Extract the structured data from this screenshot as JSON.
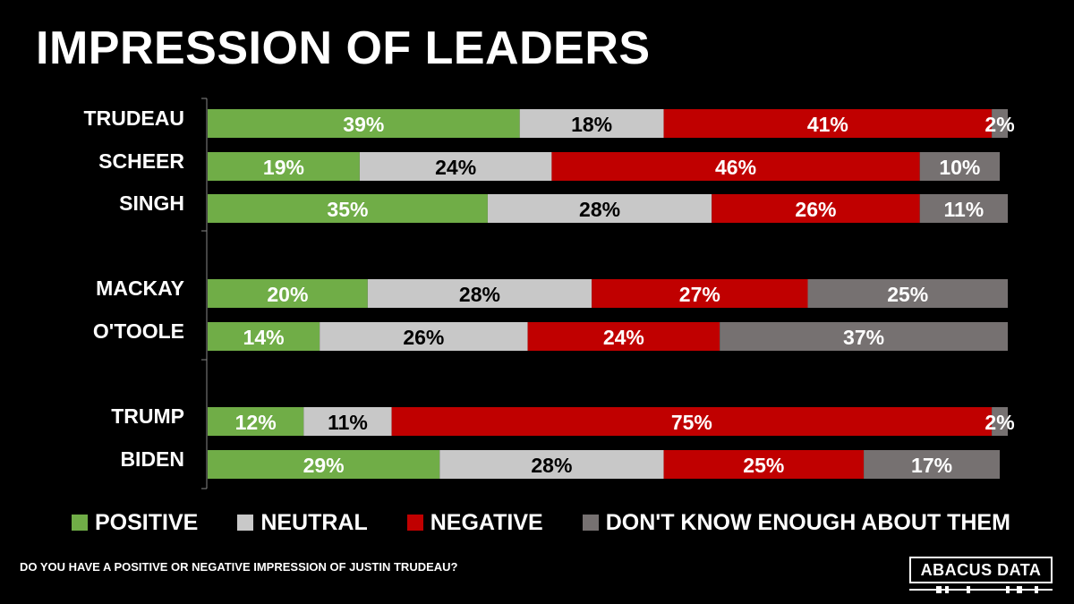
{
  "chart_data": {
    "type": "bar",
    "orientation": "horizontal",
    "stacked": true,
    "title": "IMPRESSION OF LEADERS",
    "categories": [
      "TRUDEAU",
      "SCHEER",
      "SINGH",
      "MACKAY",
      "O'TOOLE",
      "TRUMP",
      "BIDEN"
    ],
    "groups": [
      [
        0,
        1,
        2
      ],
      [
        3,
        4
      ],
      [
        5,
        6
      ]
    ],
    "series": [
      {
        "name": "POSITIVE",
        "color": "#70ad47",
        "values": [
          39,
          19,
          35,
          20,
          14,
          12,
          29
        ]
      },
      {
        "name": "NEUTRAL",
        "color": "#c8c8c8",
        "values": [
          18,
          24,
          28,
          28,
          26,
          11,
          28
        ]
      },
      {
        "name": "NEGATIVE",
        "color": "#c00000",
        "values": [
          41,
          46,
          26,
          27,
          24,
          75,
          25
        ]
      },
      {
        "name": "DON'T KNOW ENOUGH ABOUT THEM",
        "color": "#767171",
        "values": [
          2,
          10,
          11,
          25,
          37,
          2,
          17
        ]
      }
    ],
    "label_colors": [
      "#ffffff",
      "#000000",
      "#ffffff",
      "#ffffff"
    ],
    "value_suffix": "%",
    "xlim": [
      0,
      100
    ],
    "legend_position": "bottom",
    "grid": false
  },
  "question": "DO YOU HAVE A POSITIVE OR NEGATIVE IMPRESSION OF JUSTIN TRUDEAU?",
  "logo": {
    "text": "ABACUS DATA"
  }
}
